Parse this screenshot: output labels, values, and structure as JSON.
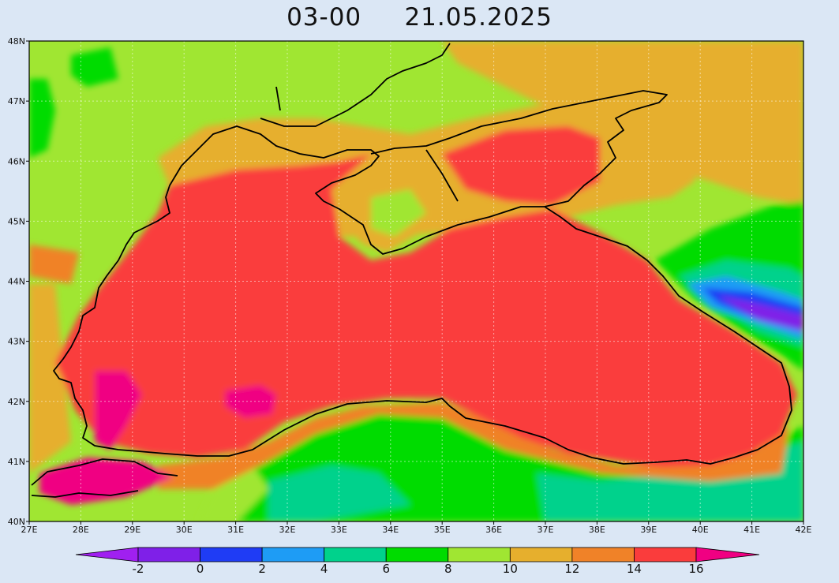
{
  "title": {
    "forecast_time": "03-00",
    "date": "21.05.2025"
  },
  "map": {
    "lon_labels": [
      "27E",
      "28E",
      "29E",
      "30E",
      "31E",
      "32E",
      "33E",
      "34E",
      "35E",
      "36E",
      "37E",
      "38E",
      "39E",
      "40E",
      "41E",
      "42E"
    ],
    "lat_labels": [
      "40N",
      "41N",
      "42N",
      "43N",
      "44N",
      "45N",
      "46N",
      "47N",
      "48N"
    ],
    "lon_range": [
      27,
      42
    ],
    "lat_range": [
      40,
      48
    ],
    "grid": true
  },
  "colorbar": {
    "labels": [
      "-2",
      "0",
      "2",
      "4",
      "6",
      "8",
      "10",
      "12",
      "14",
      "16"
    ],
    "colors": {
      "below_min": "#a020f0",
      "c_m2_0": "#7f20e8",
      "c_0_2": "#1f3cf5",
      "c_2_4": "#1e9cf5",
      "c_4_6": "#00d28c",
      "c_6_8": "#00dc00",
      "c_8_10": "#a0e632",
      "c_10_12": "#e6af2d",
      "c_12_14": "#f08228",
      "c_14_16": "#fa3c3c",
      "above_max": "#f00082"
    }
  }
}
